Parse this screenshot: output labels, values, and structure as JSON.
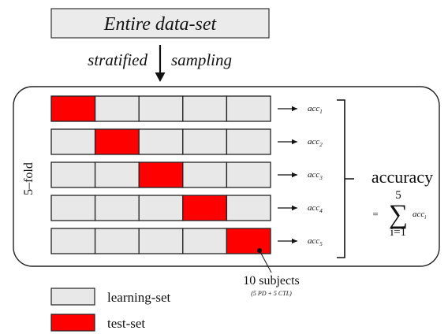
{
  "title": "Entire data-set",
  "sampling": {
    "left": "stratified",
    "right": "sampling"
  },
  "fold_label": "5–fold",
  "colors": {
    "learning": "#e8e8e8",
    "test": "#ff0000",
    "stroke": "#222222"
  },
  "folds": [
    {
      "test_index": 0,
      "acc": "acc",
      "sub": "1"
    },
    {
      "test_index": 1,
      "acc": "acc",
      "sub": "2"
    },
    {
      "test_index": 2,
      "acc": "acc",
      "sub": "3"
    },
    {
      "test_index": 3,
      "acc": "acc",
      "sub": "4"
    },
    {
      "test_index": 4,
      "acc": "acc",
      "sub": "5"
    }
  ],
  "accuracy": {
    "word": "accuracy",
    "eq": "=",
    "sum_top": "5",
    "sum_bottom": "i=1",
    "term": "acc",
    "term_sub": "i"
  },
  "annotation": {
    "subjects": "10 subjects",
    "detail": "(5 PD + 5 CTL)"
  },
  "legend": [
    {
      "label": "learning-set",
      "kind": "learning"
    },
    {
      "label": "test-set",
      "kind": "test"
    }
  ]
}
